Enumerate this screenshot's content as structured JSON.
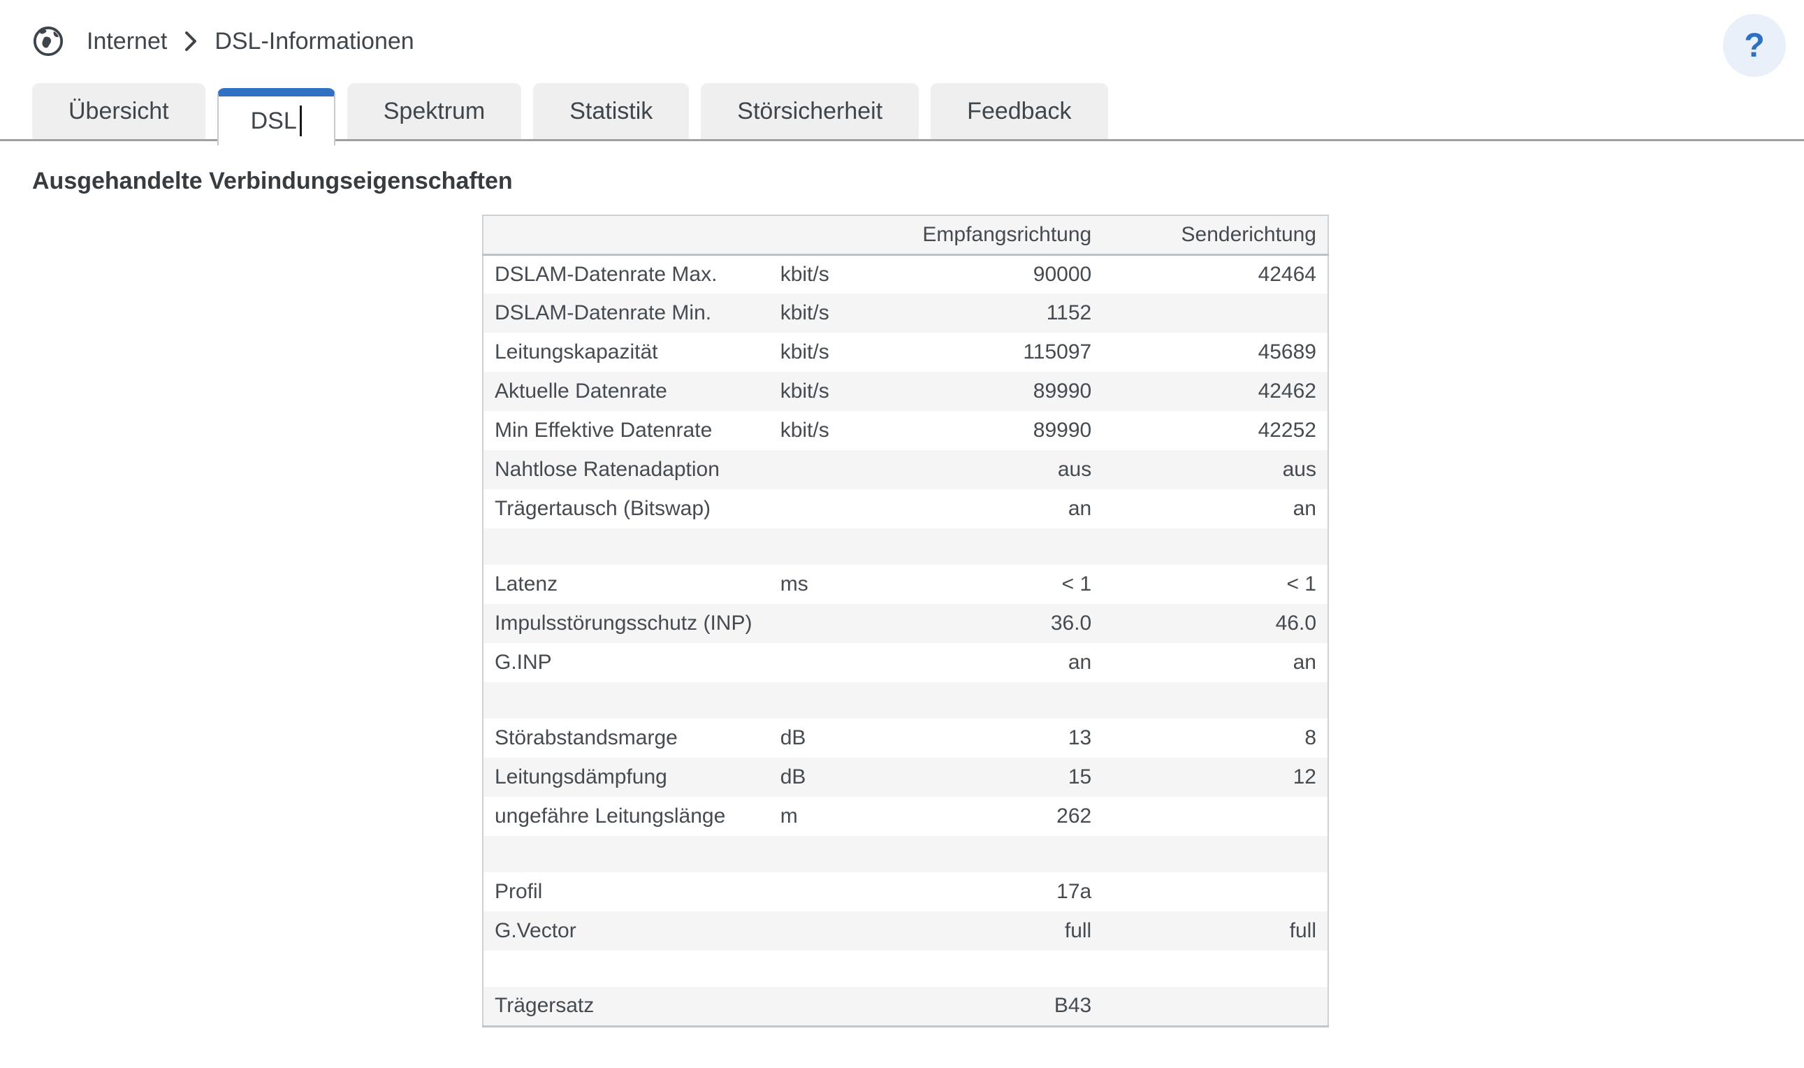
{
  "breadcrumb": {
    "section": "Internet",
    "page": "DSL-Informationen"
  },
  "help": {
    "label": "?"
  },
  "tabs": [
    {
      "name": "uebersicht",
      "label": "Übersicht",
      "active": false
    },
    {
      "name": "dsl",
      "label": "DSL",
      "active": true
    },
    {
      "name": "spektrum",
      "label": "Spektrum",
      "active": false
    },
    {
      "name": "statistik",
      "label": "Statistik",
      "active": false
    },
    {
      "name": "stoersicherheit",
      "label": "Störsicherheit",
      "active": false
    },
    {
      "name": "feedback",
      "label": "Feedback",
      "active": false
    }
  ],
  "heading": "Ausgehandelte Verbindungseigenschaften",
  "table": {
    "columns": [
      "",
      "",
      "Empfangsrichtung",
      "Senderichtung"
    ],
    "rows": [
      {
        "label": "DSLAM-Datenrate Max.",
        "unit": "kbit/s",
        "recv": "90000",
        "send": "42464"
      },
      {
        "label": "DSLAM-Datenrate Min.",
        "unit": "kbit/s",
        "recv": "1152",
        "send": ""
      },
      {
        "label": "Leitungskapazität",
        "unit": "kbit/s",
        "recv": "115097",
        "send": "45689"
      },
      {
        "label": "Aktuelle Datenrate",
        "unit": "kbit/s",
        "recv": "89990",
        "send": "42462"
      },
      {
        "label": "Min Effektive Datenrate",
        "unit": "kbit/s",
        "recv": "89990",
        "send": "42252"
      },
      {
        "label": "Nahtlose Ratenadaption",
        "unit": "",
        "recv": "aus",
        "send": "aus"
      },
      {
        "label": "Trägertausch (Bitswap)",
        "unit": "",
        "recv": "an",
        "send": "an"
      },
      {
        "spacer": true
      },
      {
        "label": "Latenz",
        "unit": "ms",
        "recv": "< 1",
        "send": "< 1"
      },
      {
        "label": "Impulsstörungsschutz (INP)",
        "unit": "",
        "recv": "36.0",
        "send": "46.0"
      },
      {
        "label": "G.INP",
        "unit": "",
        "recv": "an",
        "send": "an"
      },
      {
        "spacer": true
      },
      {
        "label": "Störabstandsmarge",
        "unit": "dB",
        "recv": "13",
        "send": "8"
      },
      {
        "label": "Leitungsdämpfung",
        "unit": "dB",
        "recv": "15",
        "send": "12"
      },
      {
        "label": "ungefähre Leitungslänge",
        "unit": "m",
        "recv": "262",
        "send": ""
      },
      {
        "spacer": true
      },
      {
        "label": "Profil",
        "unit": "",
        "recv": "17a",
        "send": ""
      },
      {
        "label": "G.Vector",
        "unit": "",
        "recv": "full",
        "send": "full"
      },
      {
        "spacer": true
      },
      {
        "label": "Trägersatz",
        "unit": "",
        "recv": "B43",
        "send": ""
      }
    ]
  },
  "colors": {
    "accent_blue": "#2f72c3",
    "help_circle_bg": "#e9f0f9",
    "row_stripe": "#f5f5f5",
    "tab_inactive_bg": "#efefef",
    "tab_underline": "#9ba1a7",
    "text": "#454b51"
  }
}
